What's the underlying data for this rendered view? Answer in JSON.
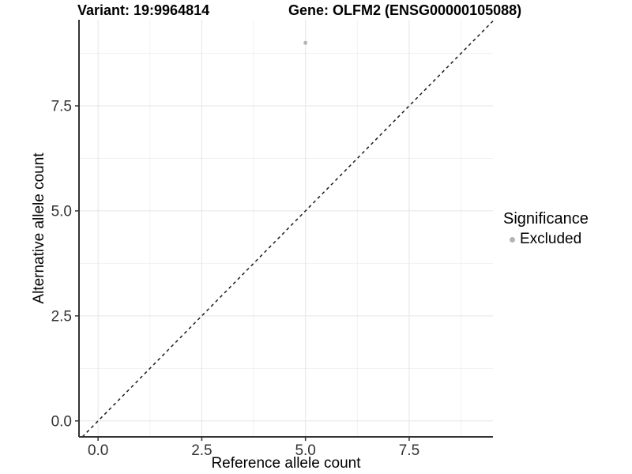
{
  "chart_data": {
    "type": "scatter",
    "title_left": "Variant: 19:9964814",
    "title_right": "Gene: OLFM2 (ENSG00000105088)",
    "xlabel": "Reference allele count",
    "ylabel": "Alternative allele count",
    "xlim": [
      -0.46,
      9.52
    ],
    "ylim": [
      -0.38,
      9.55
    ],
    "x_major_ticks": [
      0.0,
      2.5,
      5.0,
      7.5
    ],
    "x_tick_labels": [
      "0.0",
      "2.5",
      "5.0",
      "7.5"
    ],
    "x_minor_ticks": [
      1.25,
      3.75,
      6.25,
      8.75
    ],
    "y_major_ticks": [
      0.0,
      2.5,
      5.0,
      7.5
    ],
    "y_tick_labels": [
      "0.0",
      "2.5",
      "5.0",
      "7.5"
    ],
    "y_minor_ticks": [
      1.25,
      3.75,
      6.25,
      8.75
    ],
    "grid": true,
    "series": [
      {
        "name": "Excluded",
        "color": "#b4b4b4",
        "points": [
          {
            "x": 5,
            "y": 9
          }
        ]
      }
    ],
    "reference_line": {
      "kind": "identity",
      "style": "dashed",
      "color": "#1a1a1a"
    },
    "legend": {
      "title": "Significance",
      "position": "right",
      "items": [
        {
          "label": "Excluded",
          "color": "#b4b4b4"
        }
      ]
    },
    "colors": {
      "background": "#ffffff",
      "grid_major": "#e5e5e5",
      "grid_minor": "#f1f1f1",
      "axis_line": "#333333",
      "tick_mark": "#333333",
      "tick_text": "#333333",
      "point": "#b4b4b4"
    }
  }
}
